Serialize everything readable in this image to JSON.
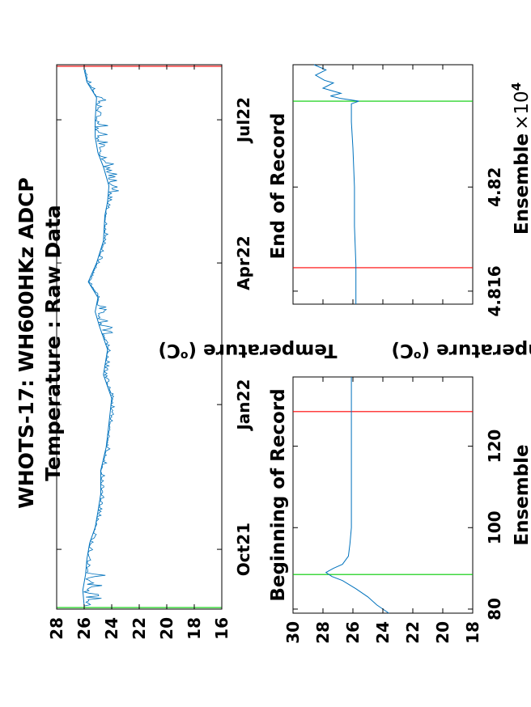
{
  "chart_data": [
    {
      "type": "line",
      "title": "WHOTS-17: WH600HKz ADCP",
      "subtitle": "Temperature : Raw Data",
      "ylabel": "Temperature (°C)",
      "ylabel_base": "Temperature (",
      "ylabel_deg": "o",
      "ylabel_unit": "C)",
      "xlabel": "",
      "xlim": [
        "2021-08-24",
        "2022-08-05"
      ],
      "ylim": [
        16,
        28
      ],
      "x_ticks": [
        "Oct21",
        "Jan22",
        "Apr22",
        "Jul22"
      ],
      "x_tick_dates": [
        "2021-10-01",
        "2022-01-01",
        "2022-04-01",
        "2022-07-01"
      ],
      "y_ticks": [
        28,
        26,
        24,
        22,
        20,
        18,
        16
      ],
      "series": [
        {
          "color": "#0072BD",
          "x": [
            "2021-08-26",
            "2021-09-05",
            "2021-09-15",
            "2021-09-25",
            "2021-10-05",
            "2021-10-15",
            "2021-10-25",
            "2021-11-05",
            "2021-11-20",
            "2021-12-05",
            "2021-12-20",
            "2022-01-05",
            "2022-01-20",
            "2022-02-05",
            "2022-02-20",
            "2022-03-01",
            "2022-03-10",
            "2022-03-20",
            "2022-04-01",
            "2022-04-15",
            "2022-05-01",
            "2022-05-10",
            "2022-05-20",
            "2022-06-01",
            "2022-06-10",
            "2022-06-20",
            "2022-07-01",
            "2022-07-15",
            "2022-07-25",
            "2022-08-02"
          ],
          "y": [
            26.0,
            26.1,
            25.9,
            25.8,
            25.6,
            25.2,
            25.0,
            24.8,
            24.8,
            24.4,
            24.2,
            24.0,
            24.6,
            24.3,
            24.9,
            25.2,
            25.0,
            25.7,
            25.1,
            24.6,
            24.5,
            24.3,
            24.2,
            24.6,
            25.0,
            25.2,
            25.2,
            25.1,
            25.8,
            26.0
          ]
        }
      ],
      "vlines": [
        {
          "x": "2021-08-25",
          "color": "#00CC00"
        },
        {
          "x": "2022-08-04",
          "color": "#FF0000"
        }
      ]
    },
    {
      "type": "line",
      "title": "Beginning of Record",
      "ylabel": "Temperature (°C)",
      "ylabel_base": "Temperature (",
      "ylabel_deg": "o",
      "ylabel_unit": "C)",
      "xlabel": "Ensemble",
      "xlim": [
        79,
        137
      ],
      "ylim": [
        18,
        30
      ],
      "x_ticks": [
        80,
        100,
        120
      ],
      "y_ticks": [
        30,
        28,
        26,
        24,
        22,
        20,
        18
      ],
      "series": [
        {
          "color": "#0072BD",
          "x": [
            79,
            81,
            83,
            85,
            87,
            88,
            89,
            90,
            91,
            93,
            96,
            100,
            104,
            108,
            112,
            116,
            120,
            125,
            130,
            137
          ],
          "y": [
            23.6,
            24.4,
            25.0,
            25.8,
            26.7,
            27.4,
            27.8,
            27.3,
            26.7,
            26.3,
            26.2,
            26.1,
            26.1,
            26.1,
            26.1,
            26.1,
            26.1,
            26.1,
            26.1,
            26.1
          ]
        }
      ],
      "vlines": [
        {
          "x": 88.5,
          "color": "#00CC00"
        },
        {
          "x": 128.5,
          "color": "#FF0000"
        }
      ]
    },
    {
      "type": "line",
      "title": "End of Record",
      "ylabel": "",
      "xlabel": "Ensemble",
      "xlabel_multiplier_base": "×10",
      "xlabel_multiplier_exp": "4",
      "xlim": [
        48155,
        48247
      ],
      "ylim": [
        18,
        30
      ],
      "x_ticks": [
        "4.816",
        "4.82"
      ],
      "x_tick_values": [
        48160,
        48200
      ],
      "y_ticks": [
        30,
        28,
        26,
        24,
        22,
        20,
        18
      ],
      "series": [
        {
          "color": "#0072BD",
          "x": [
            48155,
            48170,
            48185,
            48200,
            48215,
            48225,
            48232,
            48233,
            48234,
            48235,
            48236,
            48238,
            48240,
            48241,
            48243,
            48245,
            48247
          ],
          "y": [
            25.8,
            25.8,
            25.9,
            25.9,
            26.0,
            26.1,
            26.1,
            25.6,
            26.8,
            27.5,
            26.8,
            28.0,
            27.3,
            27.9,
            28.5,
            27.8,
            28.6
          ]
        }
      ],
      "vlines": [
        {
          "x": 48169,
          "color": "#FF0000"
        },
        {
          "x": 48233,
          "color": "#00CC00"
        }
      ]
    }
  ]
}
